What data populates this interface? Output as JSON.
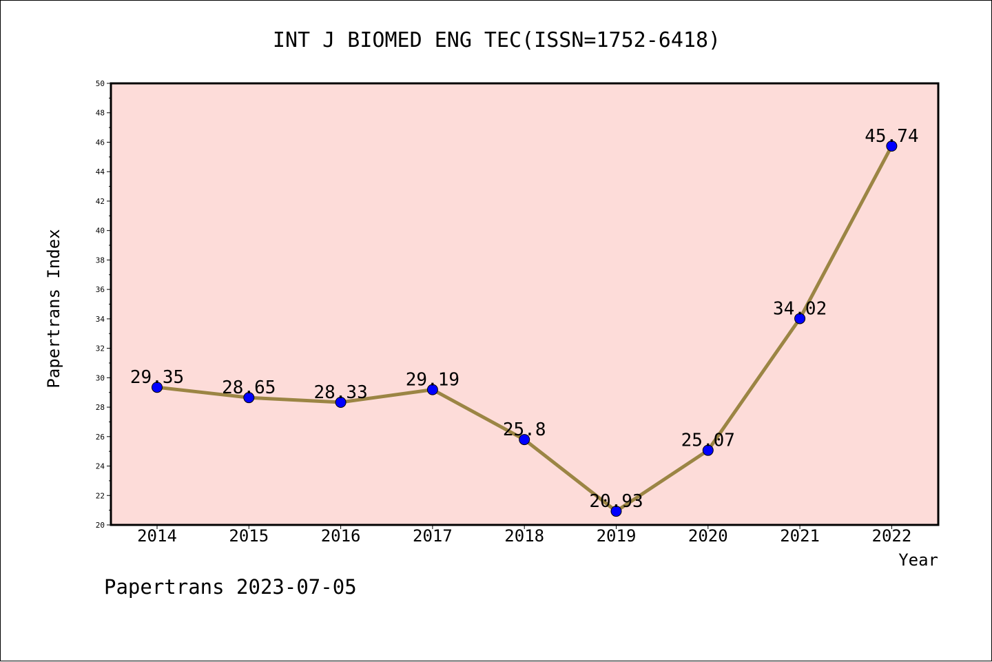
{
  "chart_data": {
    "type": "line",
    "title": "INT J BIOMED ENG TEC(ISSN=1752-6418)",
    "xlabel": "Year",
    "ylabel": "Papertrans Index",
    "categories": [
      "2014",
      "2015",
      "2016",
      "2017",
      "2018",
      "2019",
      "2020",
      "2021",
      "2022"
    ],
    "series": [
      {
        "values": [
          29.35,
          28.65,
          28.33,
          29.19,
          25.8,
          20.93,
          25.07,
          34.02,
          45.74
        ],
        "labels": [
          "29.35",
          "28.65",
          "28.33",
          "29.19",
          "25.8",
          "20.93",
          "25.07",
          "34.02",
          "45.74"
        ]
      }
    ],
    "ylim": [
      20,
      50
    ],
    "yticks": [
      "20",
      "22",
      "24",
      "26",
      "28",
      "30",
      "32",
      "34",
      "36",
      "38",
      "40",
      "42",
      "44",
      "46",
      "48",
      "50"
    ],
    "grid": false,
    "colors": {
      "plot_background": "#fddcd9",
      "line": "#9b8544",
      "marker": "#0000ff"
    }
  },
  "footer": {
    "note": "Papertrans 2023-07-05"
  }
}
